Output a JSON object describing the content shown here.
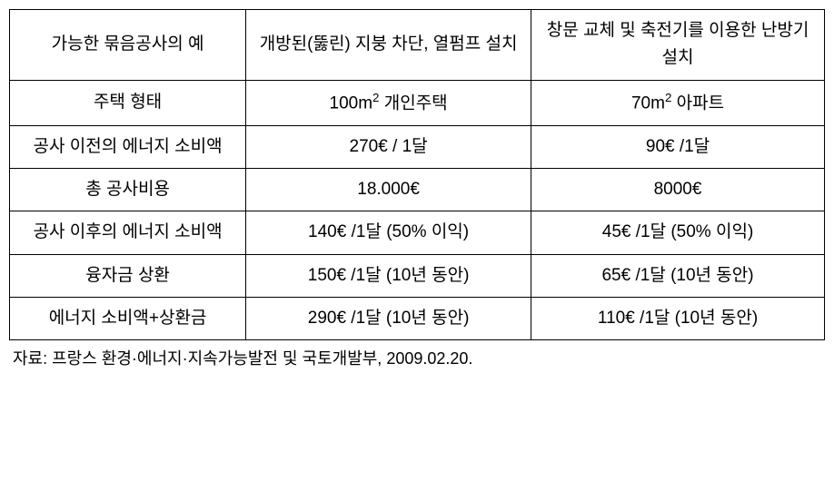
{
  "table": {
    "columns": [
      {
        "width": "29%"
      },
      {
        "width": "35%"
      },
      {
        "width": "36%"
      }
    ],
    "border_color": "#000000",
    "border_width": 1.5,
    "background_color": "#ffffff",
    "font_size": 19,
    "line_height": 1.6,
    "text_align": "center",
    "rows": [
      {
        "cells": [
          {
            "text": "가능한 묶음공사의 예"
          },
          {
            "text": "개방된(뚫린) 지붕 차단, 열펌프 설치"
          },
          {
            "text": "창문 교체 및 축전기를 이용한 난방기 설치"
          }
        ]
      },
      {
        "cells": [
          {
            "text": "주택 형태"
          },
          {
            "text_html": "100m<sup>2</sup> 개인주택",
            "text": "100m² 개인주택"
          },
          {
            "text_html": "70m<sup>2</sup> 아파트",
            "text": "70m² 아파트"
          }
        ]
      },
      {
        "cells": [
          {
            "text": "공사 이전의 에너지 소비액"
          },
          {
            "text": "270€ / 1달"
          },
          {
            "text": "90€ /1달"
          }
        ]
      },
      {
        "cells": [
          {
            "text": "총 공사비용"
          },
          {
            "text": "18.000€"
          },
          {
            "text": "8000€"
          }
        ]
      },
      {
        "cells": [
          {
            "text": "공사 이후의 에너지 소비액"
          },
          {
            "text": "140€ /1달 (50% 이익)"
          },
          {
            "text": "45€ /1달 (50% 이익)"
          }
        ]
      },
      {
        "cells": [
          {
            "text": "융자금 상환"
          },
          {
            "text": "150€ /1달 (10년 동안)"
          },
          {
            "text": "65€ /1달 (10년 동안)"
          }
        ]
      },
      {
        "cells": [
          {
            "text": "에너지 소비액+상환금"
          },
          {
            "text": "290€ /1달 (10년 동안)"
          },
          {
            "text": "110€ /1달 (10년 동안)"
          }
        ]
      }
    ]
  },
  "source": {
    "text": "자료: 프랑스 환경·에너지·지속가능발전 및 국토개발부, 2009.02.20.",
    "font_size": 18,
    "text_align": "left"
  }
}
